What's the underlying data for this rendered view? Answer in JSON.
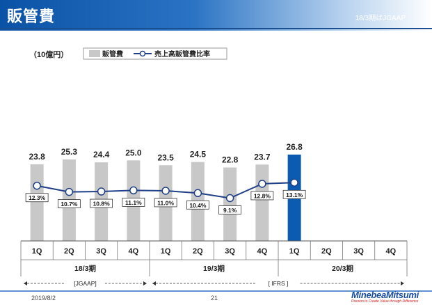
{
  "header": {
    "title": "販管費",
    "note": "18/3期はJGAAP"
  },
  "unit": "（10億円）",
  "chart_data": {
    "type": "bar",
    "categories": [
      "1Q",
      "2Q",
      "3Q",
      "4Q",
      "1Q",
      "2Q",
      "3Q",
      "4Q",
      "1Q",
      "2Q",
      "3Q",
      "4Q"
    ],
    "groups": [
      {
        "label": "18/3期",
        "from": 0,
        "to": 3
      },
      {
        "label": "19/3期",
        "from": 4,
        "to": 7
      },
      {
        "label": "20/3期",
        "from": 8,
        "to": 11
      }
    ],
    "series": [
      {
        "name": "販管費",
        "type": "bar",
        "values": [
          23.8,
          25.3,
          24.4,
          25.0,
          23.5,
          24.5,
          22.8,
          23.7,
          26.8,
          null,
          null,
          null
        ],
        "labels": [
          "23.8",
          "25.3",
          "24.4",
          "25.0",
          "23.5",
          "24.5",
          "22.8",
          "23.7",
          "26.8",
          "",
          "",
          ""
        ]
      },
      {
        "name": "売上高販管費比率",
        "type": "line",
        "values": [
          12.3,
          10.7,
          10.8,
          11.1,
          11.0,
          10.4,
          9.1,
          12.8,
          13.1,
          null,
          null,
          null
        ],
        "labels": [
          "12.3%",
          "10.7%",
          "10.8%",
          "11.1%",
          "11.0%",
          "10.4%",
          "9.1%",
          "12.8%",
          "13.1%",
          "",
          "",
          ""
        ]
      }
    ],
    "highlight_index": 8,
    "colors": {
      "bar": "#c8c8c8",
      "highlight": "#0b5bb0",
      "line": "#1f3f86"
    },
    "standards": [
      {
        "label": "[JGAAP]",
        "from": 0,
        "to": 3
      },
      {
        "label": "[ IFRS ]",
        "from": 4,
        "to": 11
      }
    ]
  },
  "footer": {
    "date": "2019/8/2",
    "page": "21"
  },
  "logo": {
    "name": "MinebeaMitsumi",
    "tagline": "Passion to Create Value through Difference"
  }
}
